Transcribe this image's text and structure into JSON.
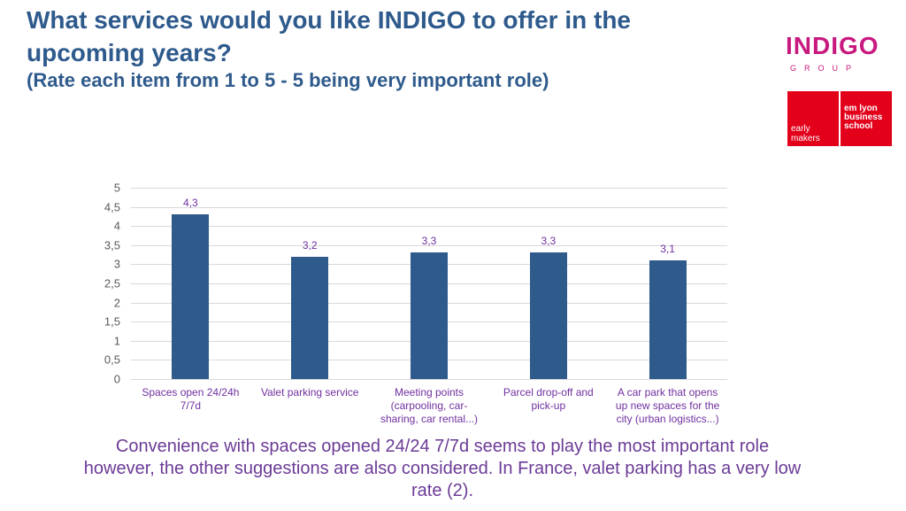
{
  "chart_data": {
    "type": "bar",
    "title": "What services would you like INDIGO to offer in the upcoming years?",
    "subtitle": "(Rate each item from 1 to 5 - 5 being very important role)",
    "categories": [
      "Spaces open 24/24h 7/7d",
      "Valet parking service",
      "Meeting points (carpooling, car-sharing, car rental...)",
      "Parcel drop-off and pick-up",
      "A car park that opens up new spaces for the city (urban logistics...)"
    ],
    "values": [
      4.3,
      3.2,
      3.3,
      3.3,
      3.1
    ],
    "value_labels": [
      "4,3",
      "3,2",
      "3,3",
      "3,3",
      "3,1"
    ],
    "color": "#2e5a8c",
    "ylim": [
      0,
      5
    ],
    "yticks": [
      0,
      {
        "value": 0.5,
        "label": "0,5"
      },
      1,
      {
        "value": 1.5,
        "label": "1,5"
      },
      2,
      {
        "value": 2.5,
        "label": "2,5"
      },
      3,
      {
        "value": 3.5,
        "label": "3,5"
      },
      4,
      {
        "value": 4.5,
        "label": "4,5"
      },
      5
    ],
    "grid": true
  },
  "caption": "Convenience with spaces opened 24/24 7/7d seems to play the most important role however, the other suggestions are also considered. In France, valet parking has a very low rate (2).",
  "logos": {
    "brand": "INDIGO",
    "brand_sub": "GROUP",
    "school_left": "early makers",
    "school_right": "em lyon business school"
  }
}
